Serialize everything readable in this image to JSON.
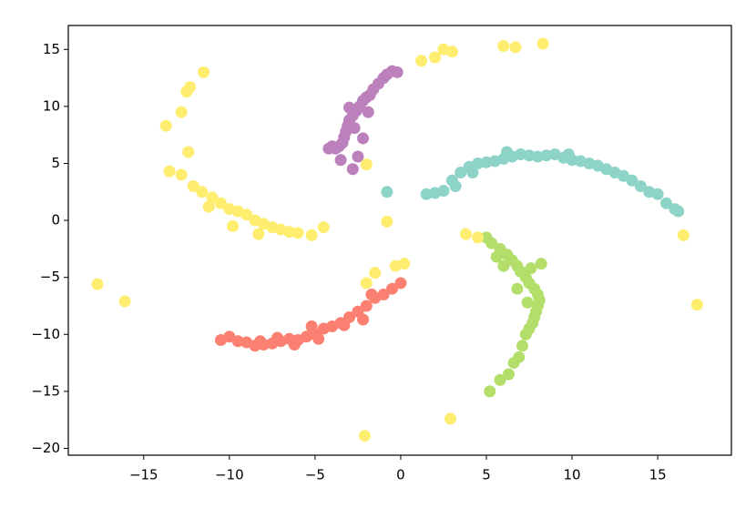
{
  "chart_data": {
    "type": "scatter",
    "xlim": [
      -19.4,
      19.3
    ],
    "ylim": [
      -20.6,
      17.1
    ],
    "xticks": [
      {
        "value": -15,
        "label": "−15"
      },
      {
        "value": -10,
        "label": "−10"
      },
      {
        "value": -5,
        "label": "−5"
      },
      0,
      5,
      10,
      15
    ],
    "yticks": [
      {
        "value": -20,
        "label": "−20"
      },
      {
        "value": -15,
        "label": "−15"
      },
      {
        "value": -10,
        "label": "−10"
      },
      {
        "value": -5,
        "label": "−5"
      },
      0,
      5,
      10,
      15
    ],
    "series": [
      {
        "color": "#8dd3c7",
        "x": [
          1.5,
          2,
          2.5,
          3,
          3.5,
          4,
          4.5,
          5,
          5.5,
          6,
          6.5,
          7,
          7.5,
          8,
          8.5,
          9,
          9.5,
          10,
          10.5,
          11,
          11.5,
          12,
          12.5,
          13,
          13.5,
          14,
          14.5,
          15,
          15.5,
          16,
          16.2,
          -0.8,
          3.2,
          4.2,
          6.2,
          9.8
        ],
        "values": [
          2.3,
          2.4,
          2.6,
          3.5,
          4.2,
          4.7,
          5,
          5.1,
          5.2,
          5.4,
          5.6,
          5.8,
          5.7,
          5.6,
          5.7,
          5.8,
          5.5,
          5.3,
          5.2,
          5,
          4.8,
          4.5,
          4.2,
          3.9,
          3.5,
          3,
          2.5,
          2.3,
          1.5,
          1,
          0.8,
          2.5,
          3,
          4.2,
          6,
          5.8
        ]
      },
      {
        "color": "#b3de69",
        "x": [
          5,
          5.3,
          5.8,
          6.2,
          6.5,
          6.8,
          7,
          7.3,
          7.5,
          7.8,
          8,
          8.1,
          8,
          7.9,
          7.8,
          7.7,
          7.5,
          7.3,
          7.1,
          6.9,
          6.6,
          6.3,
          5.8,
          5.2,
          6,
          7.6,
          8.2,
          5.6,
          6.8,
          7.4
        ],
        "values": [
          -1.5,
          -2,
          -2.5,
          -3,
          -3.5,
          -4,
          -4.5,
          -5,
          -5.5,
          -6,
          -6.5,
          -7,
          -7.5,
          -8,
          -8.5,
          -9,
          -9.5,
          -10,
          -11,
          -12,
          -12.5,
          -13.5,
          -14,
          -15,
          -4,
          -4.2,
          -3.8,
          -3.2,
          -6,
          -7.2
        ]
      },
      {
        "color": "#fb8072",
        "x": [
          0,
          -0.5,
          -1,
          -1.5,
          -2,
          -2.5,
          -3,
          -3.5,
          -4,
          -4.5,
          -5,
          -5.5,
          -6,
          -6.5,
          -7,
          -7.5,
          -8,
          -8.5,
          -9,
          -9.5,
          -10,
          -10.5,
          -1.7,
          -2.2,
          -3.3,
          -4.8,
          -6.2,
          -7.2,
          -8.2,
          -5.2
        ],
        "values": [
          -5.5,
          -6,
          -6.5,
          -6.8,
          -7.5,
          -8,
          -8.5,
          -9,
          -9.3,
          -9.5,
          -10,
          -10.2,
          -10.5,
          -10.4,
          -10.6,
          -10.8,
          -10.9,
          -11,
          -10.7,
          -10.6,
          -10.2,
          -10.5,
          -6.5,
          -8.7,
          -9.2,
          -10.4,
          -10.9,
          -10.3,
          -10.6,
          -9.3
        ]
      },
      {
        "color": "#bc80bd",
        "x": [
          -0.2,
          -0.5,
          -0.8,
          -1,
          -1.3,
          -1.6,
          -1.8,
          -2,
          -2.2,
          -2.4,
          -2.6,
          -2.8,
          -3,
          -3.1,
          -3.2,
          -3.3,
          -3.4,
          -3.6,
          -3.8,
          -4,
          -4.2,
          -2.8,
          -2.5,
          -3.5,
          -2.2,
          -1.9,
          -3,
          -2.7
        ],
        "values": [
          13,
          13.1,
          12.8,
          12.5,
          12,
          11.5,
          11,
          10.8,
          10.5,
          10,
          9.6,
          9.2,
          8.8,
          8.3,
          7.8,
          7.3,
          6.8,
          6.5,
          6.3,
          6.5,
          6.3,
          4.5,
          5.6,
          5.3,
          7.2,
          9.5,
          9.9,
          8.1
        ]
      },
      {
        "color": "#ffed6f",
        "x": [
          -11.5,
          -12.3,
          -12.5,
          -12.8,
          -13.7,
          -12.4,
          -13.5,
          -12.8,
          -12.1,
          -11.6,
          -11,
          -10.5,
          -10,
          -9.5,
          -9,
          -8.5,
          -8,
          -7.5,
          -7,
          -6.5,
          -6,
          -5.2,
          -4.5,
          -11.2,
          -9.8,
          -8.3,
          -17.7,
          -16.1,
          -2.1,
          2.9,
          17.3,
          16.5,
          3.8,
          4.5,
          -0.8,
          -2,
          1.2,
          2,
          2.5,
          3,
          6,
          6.7,
          8.3,
          -0.3,
          0.2,
          -1.5,
          -2
        ],
        "values": [
          13,
          11.7,
          11.3,
          9.5,
          8.3,
          6,
          4.3,
          4,
          3,
          2.5,
          2,
          1.5,
          1,
          0.8,
          0.5,
          0,
          -0.3,
          -0.6,
          -0.8,
          -1,
          -1.1,
          -1.3,
          -0.6,
          1.2,
          -0.5,
          -1.2,
          -5.6,
          -7.1,
          -18.9,
          -17.4,
          -7.4,
          -1.3,
          -1.2,
          -1.5,
          -0.1,
          4.9,
          14,
          14.3,
          15,
          14.8,
          15.3,
          15.2,
          15.5,
          -4,
          -3.8,
          -4.6,
          -5.5
        ]
      }
    ]
  }
}
